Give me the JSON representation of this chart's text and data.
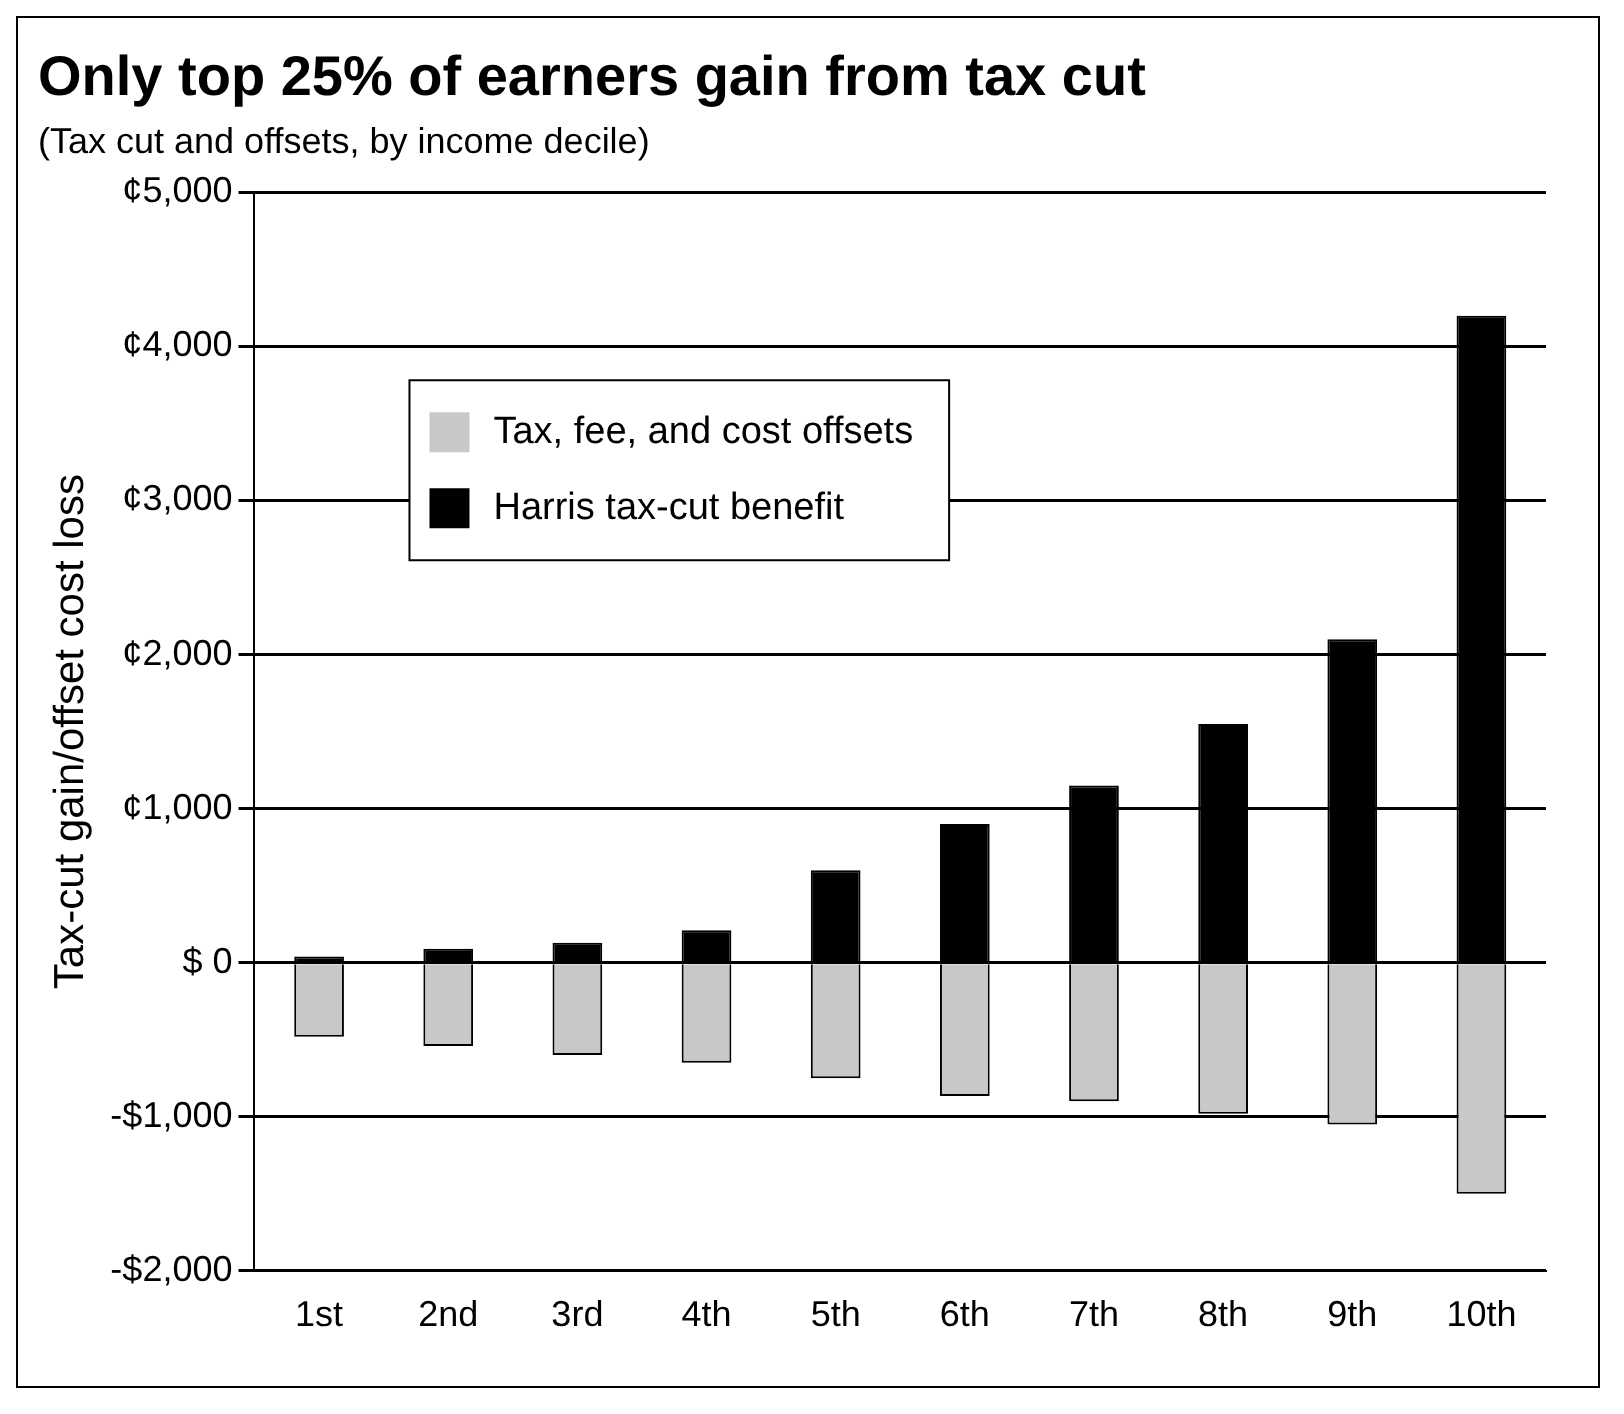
{
  "chart_data": {
    "type": "bar",
    "title": "Only top 25% of earners gain from tax cut",
    "subtitle": "(Tax cut and offsets, by income decile)",
    "ylabel": "Tax-cut gain/offset cost loss",
    "categories": [
      "1st",
      "2nd",
      "3rd",
      "4th",
      "5th",
      "6th",
      "7th",
      "8th",
      "9th",
      "10th"
    ],
    "series": [
      {
        "name": "Tax, fee, and cost offsets",
        "color": "#c8c8c8",
        "values": [
          -480,
          -540,
          -600,
          -650,
          -750,
          -865,
          -900,
          -980,
          -1050,
          -1500
        ]
      },
      {
        "name": "Harris tax-cut benefit",
        "color": "#000000",
        "values": [
          40,
          90,
          130,
          210,
          600,
          900,
          1150,
          1550,
          2100,
          4200
        ]
      }
    ],
    "stacked": true,
    "ylim": [
      -2000,
      5000
    ],
    "yticks": [
      {
        "value": -2000,
        "label": "-$2,000"
      },
      {
        "value": -1000,
        "label": "-$1,000"
      },
      {
        "value": 0,
        "label": "$ 0"
      },
      {
        "value": 1000,
        "label": "¢1,000"
      },
      {
        "value": 2000,
        "label": "¢2,000"
      },
      {
        "value": 3000,
        "label": "¢3,000"
      },
      {
        "value": 4000,
        "label": "¢4,000"
      },
      {
        "value": 5000,
        "label": "¢5,000"
      }
    ],
    "grid": "y",
    "legend": "top left"
  }
}
